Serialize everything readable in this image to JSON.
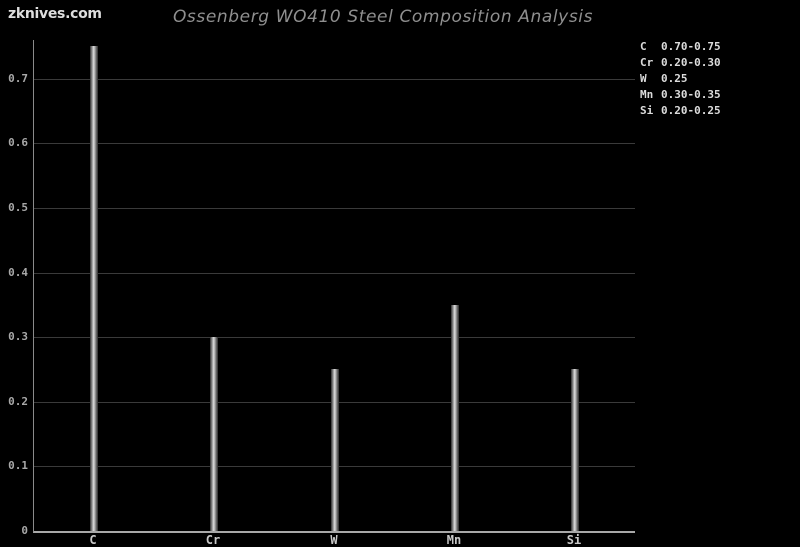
{
  "watermark": "zknives.com",
  "chart_data": {
    "type": "bar",
    "title": "Ossenberg WO410 Steel Composition Analysis",
    "xlabel": "",
    "ylabel": "",
    "categories": [
      "C",
      "Cr",
      "W",
      "Mn",
      "Si"
    ],
    "values": [
      0.75,
      0.3,
      0.25,
      0.35,
      0.25
    ],
    "legend": [
      {
        "element": "C",
        "range": "0.70-0.75"
      },
      {
        "element": "Cr",
        "range": "0.20-0.30"
      },
      {
        "element": "W",
        "range": "0.25"
      },
      {
        "element": "Mn",
        "range": "0.30-0.35"
      },
      {
        "element": "Si",
        "range": "0.20-0.25"
      }
    ],
    "legend_position": "top-right",
    "ylim": [
      0,
      0.76
    ],
    "yticks": [
      0,
      0.1,
      0.2,
      0.3,
      0.4,
      0.5,
      0.6,
      0.7
    ],
    "ytick_labels": [
      "0",
      "0.1",
      "0.2",
      "0.3",
      "0.4",
      "0.5",
      "0.6",
      "0.7"
    ],
    "grid": true,
    "colors": {
      "background": "#000000",
      "title": "#8f8f8f",
      "watermark": "#dedede",
      "grid": "#3a3a3a",
      "axis": "#a8a8a8",
      "tick_label": "#a8a8a8",
      "category_label": "#c8c8c8",
      "legend_text": "#dcdcdc",
      "bar_dark_edge": "#2e2e2e",
      "bar_highlight": "#dcdcdc"
    }
  }
}
